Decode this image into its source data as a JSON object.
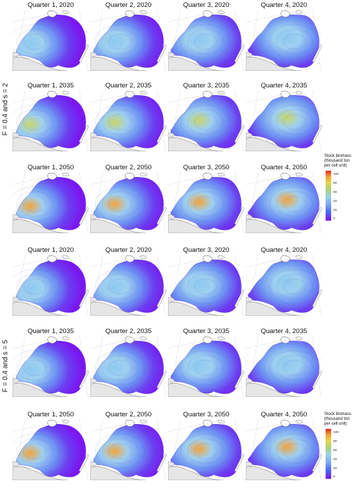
{
  "row_labels": [
    "F = 0.4 and s = 2",
    "F = 0.4 and s = 5"
  ],
  "panel_titles": [
    [
      "Quarter 1, 2020",
      "Quarter 2, 2020",
      "Quarter 3, 2020",
      "Quarter 4, 2020"
    ],
    [
      "Quarter 1, 2035",
      "Quarter 2, 2035",
      "Quarter 3, 2035",
      "Quarter 4, 2035"
    ],
    [
      "Quarter 1, 2050",
      "Quarter 2, 2050",
      "Quarter 3, 2050",
      "Quarter 4, 2050"
    ],
    [
      "Quarter 1, 2020",
      "Quarter 2, 2020",
      "Quarter 3, 2020",
      "Quarter 4, 2020"
    ],
    [
      "Quarter 1, 2035",
      "Quarter 2, 2035",
      "Quarter 3, 2035",
      "Quarter 4, 2035"
    ],
    [
      "Quarter 1, 2050",
      "Quarter 2, 2050",
      "Quarter 3, 2050",
      "Quarter 4, 2050"
    ]
  ],
  "legend": {
    "title_lines": [
      "Stock biomass",
      "(thousand ton",
      "per cell unit)"
    ],
    "ticks": [
      "100",
      "80",
      "60",
      "40",
      "20",
      "0"
    ]
  },
  "colors": {
    "low": "#7b16f2",
    "mid": "#7ea4f6",
    "high": "#e52b22",
    "land": "#e6e6e6"
  }
}
